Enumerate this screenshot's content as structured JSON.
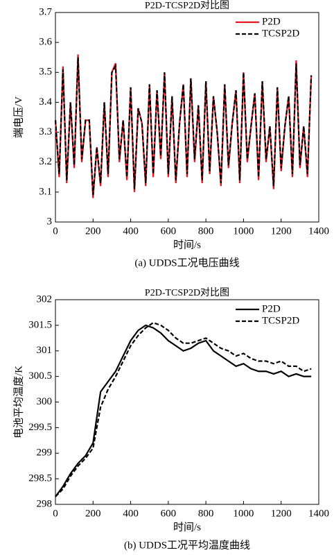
{
  "chart_data": [
    {
      "type": "line",
      "title": "P2D-TCSP2D对比图",
      "x_label": "时间/s",
      "y_label": "端电压/V",
      "caption": "(a) UDDS工况电压曲线",
      "x": [
        0,
        20,
        40,
        60,
        80,
        100,
        120,
        140,
        160,
        180,
        200,
        220,
        240,
        260,
        280,
        300,
        320,
        340,
        360,
        380,
        400,
        420,
        440,
        460,
        480,
        500,
        520,
        540,
        560,
        580,
        600,
        620,
        640,
        660,
        680,
        700,
        720,
        740,
        760,
        780,
        800,
        820,
        840,
        860,
        880,
        900,
        920,
        940,
        960,
        980,
        1000,
        1020,
        1040,
        1060,
        1080,
        1100,
        1120,
        1140,
        1160,
        1180,
        1200,
        1220,
        1240,
        1260,
        1280,
        1300,
        1320,
        1340,
        1360
      ],
      "series": [
        {
          "name": "P2D",
          "color": "#e8141c",
          "dash": false,
          "values": [
            3.34,
            3.15,
            3.52,
            3.13,
            3.4,
            3.18,
            3.56,
            3.2,
            3.34,
            3.34,
            3.08,
            3.25,
            3.12,
            3.4,
            3.15,
            3.5,
            3.53,
            3.2,
            3.34,
            3.14,
            3.45,
            3.1,
            3.38,
            3.33,
            3.12,
            3.46,
            3.15,
            3.44,
            3.21,
            3.5,
            3.15,
            3.42,
            3.13,
            3.33,
            3.46,
            3.15,
            3.48,
            3.2,
            3.39,
            3.13,
            3.47,
            3.16,
            3.42,
            3.3,
            3.12,
            3.46,
            3.18,
            3.33,
            3.44,
            3.13,
            3.5,
            3.2,
            3.32,
            3.43,
            3.14,
            3.47,
            3.2,
            3.32,
            3.11,
            3.45,
            3.17,
            3.32,
            3.42,
            3.15,
            3.54,
            3.18,
            3.32,
            3.15,
            3.49
          ]
        },
        {
          "name": "TCSP2D",
          "color": "#000000",
          "dash": true,
          "values": [
            3.34,
            3.16,
            3.51,
            3.14,
            3.4,
            3.19,
            3.55,
            3.21,
            3.34,
            3.34,
            3.09,
            3.25,
            3.13,
            3.4,
            3.16,
            3.5,
            3.52,
            3.21,
            3.34,
            3.15,
            3.45,
            3.11,
            3.38,
            3.33,
            3.13,
            3.46,
            3.16,
            3.44,
            3.22,
            3.5,
            3.16,
            3.42,
            3.14,
            3.33,
            3.46,
            3.16,
            3.48,
            3.21,
            3.39,
            3.14,
            3.47,
            3.17,
            3.42,
            3.3,
            3.13,
            3.46,
            3.19,
            3.33,
            3.44,
            3.14,
            3.5,
            3.21,
            3.32,
            3.43,
            3.15,
            3.47,
            3.21,
            3.32,
            3.12,
            3.45,
            3.18,
            3.32,
            3.42,
            3.16,
            3.53,
            3.19,
            3.32,
            3.16,
            3.49
          ]
        }
      ],
      "xlim": [
        0,
        1400
      ],
      "xticks": [
        0,
        200,
        400,
        600,
        800,
        1000,
        1200,
        1400
      ],
      "ylim": [
        3,
        3.7
      ],
      "yticks": [
        3,
        3.1,
        3.2,
        3.3,
        3.4,
        3.5,
        3.6,
        3.7
      ],
      "legend": "upper right"
    },
    {
      "type": "line",
      "title": "P2D-TCSP2D对比图",
      "x_label": "时间/s",
      "y_label": "电池平均温度/K",
      "caption": "(b) UDDS工况平均温度曲线",
      "x": [
        0,
        40,
        80,
        120,
        160,
        200,
        240,
        280,
        320,
        360,
        400,
        440,
        480,
        520,
        560,
        600,
        640,
        680,
        720,
        760,
        800,
        840,
        880,
        920,
        960,
        1000,
        1040,
        1080,
        1120,
        1160,
        1200,
        1240,
        1280,
        1320,
        1360
      ],
      "series": [
        {
          "name": "P2D",
          "color": "#000000",
          "dash": false,
          "values": [
            298.15,
            298.35,
            298.6,
            298.8,
            298.95,
            299.2,
            300.2,
            300.4,
            300.6,
            300.9,
            301.2,
            301.4,
            301.5,
            301.45,
            301.35,
            301.2,
            301.1,
            301.0,
            301.05,
            301.15,
            301.2,
            301.0,
            300.9,
            300.8,
            300.7,
            300.75,
            300.65,
            300.6,
            300.6,
            300.55,
            300.6,
            300.5,
            300.55,
            300.5,
            300.5
          ]
        },
        {
          "name": "TCSP2D",
          "color": "#000000",
          "dash": true,
          "values": [
            298.15,
            298.3,
            298.55,
            298.75,
            298.9,
            299.1,
            299.9,
            300.25,
            300.5,
            300.8,
            301.1,
            301.3,
            301.45,
            301.55,
            301.5,
            301.4,
            301.25,
            301.15,
            301.15,
            301.2,
            301.25,
            301.15,
            301.05,
            301.0,
            300.9,
            300.95,
            300.85,
            300.8,
            300.8,
            300.75,
            300.8,
            300.7,
            300.7,
            300.6,
            300.65
          ]
        }
      ],
      "xlim": [
        0,
        1400
      ],
      "xticks": [
        0,
        200,
        400,
        600,
        800,
        1000,
        1200,
        1400
      ],
      "ylim": [
        298,
        302
      ],
      "yticks": [
        298,
        298.5,
        299,
        299.5,
        300,
        300.5,
        301,
        301.5,
        302
      ],
      "legend": "upper right"
    }
  ]
}
